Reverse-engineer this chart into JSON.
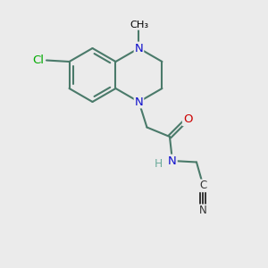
{
  "bg_color": "#ebebeb",
  "bond_color": "#4a7a6a",
  "bond_lw": 1.5,
  "n_color": "#1010cc",
  "o_color": "#cc0000",
  "cl_color": "#00aa00",
  "dark_color": "#333333",
  "h_color": "#6aaa9a",
  "figsize": [
    3.0,
    3.0
  ],
  "dpi": 100,
  "xlim": [
    0,
    10
  ],
  "ylim": [
    0,
    10
  ]
}
